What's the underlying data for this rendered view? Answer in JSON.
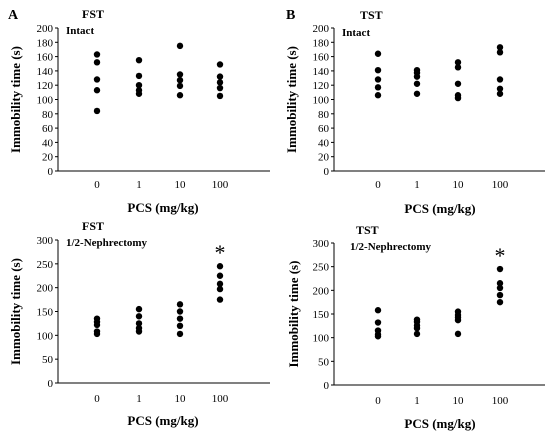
{
  "figure": {
    "panel_letters": [
      "A",
      "B"
    ]
  },
  "chart_data": [
    {
      "type": "scatter",
      "panel": "A",
      "test": "FST",
      "condition": "Intact",
      "xlabel": "PCS (mg/kg)",
      "ylabel": "Immobility time (s)",
      "categories": [
        "0",
        "1",
        "10",
        "100"
      ],
      "ylim": [
        0,
        200
      ],
      "yticks": [
        0,
        20,
        40,
        60,
        80,
        100,
        120,
        140,
        160,
        180,
        200
      ],
      "points": [
        [
          163,
          152,
          128,
          113,
          84
        ],
        [
          155,
          133,
          120,
          113,
          108
        ],
        [
          175,
          135,
          127,
          119,
          106
        ],
        [
          149,
          132,
          124,
          116,
          105
        ]
      ],
      "significance": [
        "",
        "",
        "",
        ""
      ],
      "grid": false,
      "legend": "none"
    },
    {
      "type": "scatter",
      "panel": "B",
      "test": "TST",
      "condition": "Intact",
      "xlabel": "PCS (mg/kg)",
      "ylabel": "Immobility time (s)",
      "categories": [
        "0",
        "1",
        "10",
        "100"
      ],
      "ylim": [
        0,
        200
      ],
      "yticks": [
        0,
        20,
        40,
        60,
        80,
        100,
        120,
        140,
        160,
        180,
        200
      ],
      "points": [
        [
          164,
          141,
          128,
          117,
          106
        ],
        [
          141,
          137,
          132,
          122,
          108
        ],
        [
          152,
          145,
          122,
          106,
          102
        ],
        [
          173,
          166,
          128,
          115,
          108
        ]
      ],
      "significance": [
        "",
        "",
        "",
        ""
      ],
      "grid": false,
      "legend": "none"
    },
    {
      "type": "scatter",
      "panel": "",
      "test": "FST",
      "condition": "1/2-Nephrectomy",
      "xlabel": "PCS (mg/kg)",
      "ylabel": "Immobility time (s)",
      "categories": [
        "0",
        "1",
        "10",
        "100"
      ],
      "ylim": [
        0,
        300
      ],
      "yticks": [
        0,
        50,
        100,
        150,
        200,
        250,
        300
      ],
      "points": [
        [
          135,
          128,
          122,
          108,
          103
        ],
        [
          155,
          140,
          125,
          115,
          108
        ],
        [
          165,
          150,
          135,
          120,
          103
        ],
        [
          245,
          225,
          208,
          197,
          175
        ]
      ],
      "significance": [
        "",
        "",
        "",
        "*"
      ],
      "grid": false,
      "legend": "none"
    },
    {
      "type": "scatter",
      "panel": "",
      "test": "TST",
      "condition": "1/2-Nephrectomy",
      "xlabel": "PCS (mg/kg)",
      "ylabel": "Immobility time (s)",
      "categories": [
        "0",
        "1",
        "10",
        "100"
      ],
      "ylim": [
        0,
        300
      ],
      "yticks": [
        0,
        50,
        100,
        150,
        200,
        250,
        300
      ],
      "points": [
        [
          158,
          132,
          115,
          107,
          103
        ],
        [
          138,
          133,
          126,
          120,
          108
        ],
        [
          155,
          148,
          143,
          137,
          108
        ],
        [
          245,
          215,
          205,
          190,
          175
        ]
      ],
      "significance": [
        "",
        "",
        "",
        "*"
      ],
      "grid": false,
      "legend": "none"
    }
  ]
}
